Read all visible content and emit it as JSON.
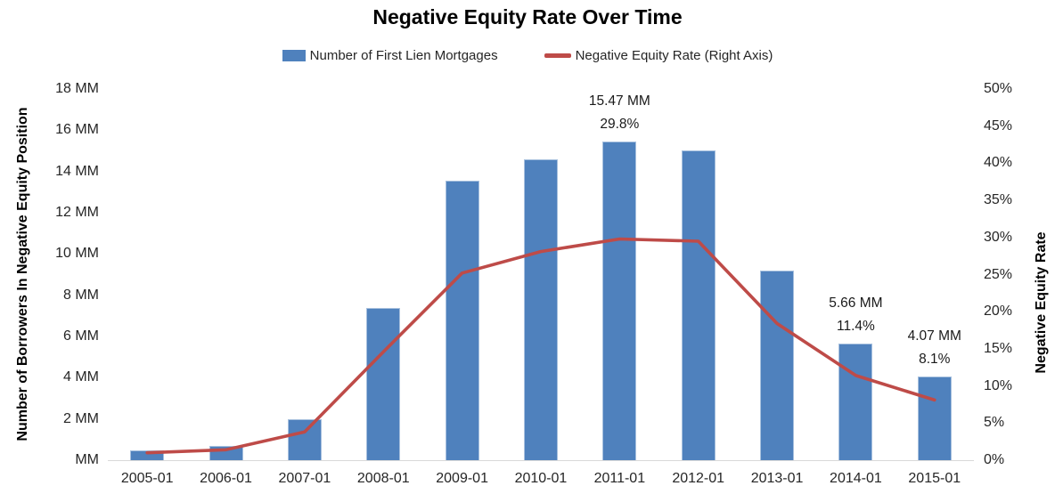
{
  "title": "Negative Equity Rate Over Time",
  "legend": {
    "bar_label": "Number of First Lien Mortgages",
    "line_label": "Negative Equity Rate (Right Axis)"
  },
  "colors": {
    "bar": "#4F81BD",
    "bar_border": "#A7C0DE",
    "line": "#BE4B48",
    "axis_line": "#D9D9D9",
    "text": "#262626"
  },
  "left_axis": {
    "title": "Number of Borrowers In Negative Equity Position",
    "ticks": [
      "18 MM",
      "16 MM",
      "14 MM",
      "12 MM",
      "10 MM",
      "8 MM",
      "6 MM",
      "4 MM",
      "2 MM",
      "MM"
    ],
    "max": 18
  },
  "right_axis": {
    "title": "Negative Equity Rate",
    "ticks": [
      "50%",
      "45%",
      "40%",
      "35%",
      "30%",
      "25%",
      "20%",
      "15%",
      "10%",
      "5%",
      "0%"
    ],
    "max": 50
  },
  "chart_data": {
    "type": "bar",
    "categories": [
      "2005-01",
      "2006-01",
      "2007-01",
      "2008-01",
      "2009-01",
      "2010-01",
      "2011-01",
      "2012-01",
      "2013-01",
      "2014-01",
      "2015-01"
    ],
    "series": [
      {
        "name": "Number of First Lien Mortgages",
        "type": "bar",
        "axis": "left",
        "unit": "MM",
        "values": [
          0.48,
          0.7,
          2.0,
          7.4,
          13.57,
          14.57,
          15.47,
          15.02,
          9.2,
          5.66,
          4.07
        ]
      },
      {
        "name": "Negative Equity Rate (Right Axis)",
        "type": "line",
        "axis": "right",
        "unit": "%",
        "values": [
          1.0,
          1.4,
          3.8,
          14.6,
          25.2,
          28.1,
          29.8,
          29.5,
          18.4,
          11.4,
          8.1
        ]
      }
    ],
    "annotations": [
      {
        "category": "2011-01",
        "lines": [
          "15.47 MM",
          "29.8%"
        ]
      },
      {
        "category": "2014-01",
        "lines": [
          "5.66 MM",
          "11.4%"
        ]
      },
      {
        "category": "2015-01",
        "lines": [
          "4.07 MM",
          "8.1%"
        ]
      }
    ],
    "title": "Negative Equity Rate Over Time",
    "left_ylabel": "Number of Borrowers In Negative Equity Position",
    "right_ylabel": "Negative Equity Rate",
    "left_ylim": [
      0,
      18
    ],
    "right_ylim": [
      0,
      50
    ],
    "grid": false,
    "legend_position": "top"
  }
}
